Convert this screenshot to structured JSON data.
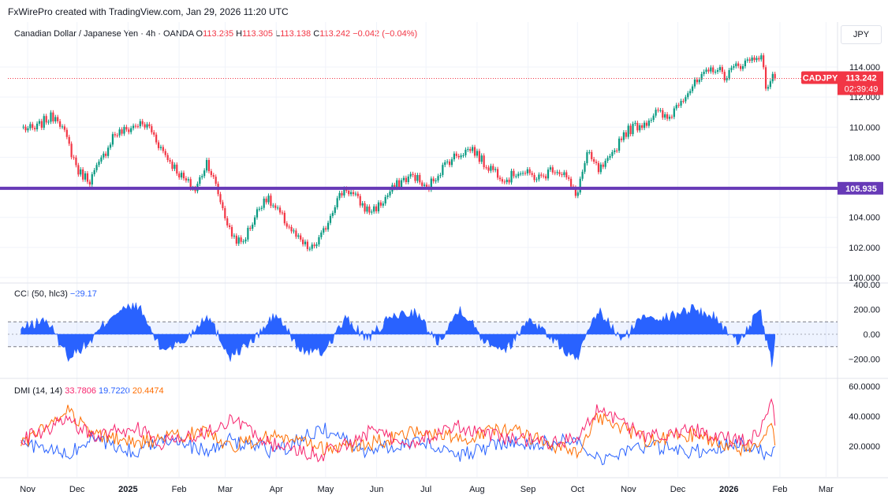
{
  "header": {
    "credit": "FxWirePro created with TradingView.com, Jan 29, 2026 11:20 UTC"
  },
  "symbol": {
    "name": "Canadian Dollar / Japanese Yen · 4h · OANDA",
    "open_label": "O",
    "open": "113.285",
    "high_label": "H",
    "high": "113.305",
    "low_label": "L",
    "low": "113.138",
    "close_label": "C",
    "close": "113.242",
    "change": "−0.042 (−0.04%)"
  },
  "currency": "JPY",
  "price_tag": {
    "ticker": "CADJPY",
    "price": "113.242",
    "countdown": "02:39:49"
  },
  "level_line": {
    "value": 105.935,
    "label": "105.935",
    "color": "#673ab7"
  },
  "cci": {
    "label": "CCI (50, hlc3)",
    "value": "−29.17",
    "ticks": [
      "400.00",
      "200.00",
      "0.00",
      "−200.00"
    ]
  },
  "dmi": {
    "label": "DMI (14, 14)",
    "plus": "33.7806",
    "minus": "19.7220",
    "adx": "20.4474",
    "ticks": [
      "60.0000",
      "40.0000",
      "20.0000"
    ]
  },
  "colors": {
    "up": "#089981",
    "down": "#f23645",
    "cci": "#2962ff",
    "dmi_plus": "#f7246d",
    "dmi_minus": "#2962ff",
    "adx": "#ff6d00"
  },
  "chart_data": {
    "type": "line",
    "x_ticks": [
      "Nov",
      "Dec",
      "2025",
      "Feb",
      "Mar",
      "Apr",
      "May",
      "Jun",
      "Jul",
      "Aug",
      "Sep",
      "Oct",
      "Nov",
      "Dec",
      "2026",
      "Feb",
      "Mar"
    ],
    "y_ticks": [
      "114.000",
      "112.000",
      "110.000",
      "108.000",
      "106.000",
      "104.000",
      "102.000",
      "100.000"
    ],
    "ylim": [
      100,
      115.5
    ],
    "grid": true,
    "series": [
      {
        "name": "CADJPY",
        "x": [
          "2024-10-28",
          "2024-11-05",
          "2024-11-12",
          "2024-11-19",
          "2024-11-26",
          "2024-12-02",
          "2024-12-09",
          "2024-12-16",
          "2024-12-23",
          "2024-12-31",
          "2025-01-07",
          "2025-01-14",
          "2025-01-21",
          "2025-01-28",
          "2025-02-04",
          "2025-02-11",
          "2025-02-18",
          "2025-02-25",
          "2025-03-04",
          "2025-03-11",
          "2025-03-18",
          "2025-03-25",
          "2025-04-01",
          "2025-04-08",
          "2025-04-15",
          "2025-04-22",
          "2025-04-29",
          "2025-05-06",
          "2025-05-13",
          "2025-05-20",
          "2025-05-27",
          "2025-06-03",
          "2025-06-10",
          "2025-06-17",
          "2025-06-24",
          "2025-07-01",
          "2025-07-08",
          "2025-07-15",
          "2025-07-22",
          "2025-07-29",
          "2025-08-05",
          "2025-08-12",
          "2025-08-19",
          "2025-08-26",
          "2025-09-02",
          "2025-09-09",
          "2025-09-16",
          "2025-09-23",
          "2025-09-30",
          "2025-10-07",
          "2025-10-14",
          "2025-10-21",
          "2025-10-28",
          "2025-11-04",
          "2025-11-11",
          "2025-11-18",
          "2025-11-25",
          "2025-12-02",
          "2025-12-09",
          "2025-12-16",
          "2025-12-23",
          "2025-12-30",
          "2026-01-06",
          "2026-01-13",
          "2026-01-20",
          "2026-01-24",
          "2026-01-27",
          "2026-01-29"
        ],
        "y": [
          110.0,
          109.8,
          110.5,
          110.8,
          108.8,
          107.0,
          106.5,
          107.8,
          109.5,
          109.8,
          110.2,
          110.0,
          108.6,
          107.5,
          106.5,
          105.8,
          107.8,
          105.5,
          103.0,
          102.2,
          103.8,
          105.4,
          104.5,
          103.5,
          102.4,
          101.8,
          102.8,
          104.8,
          106.0,
          105.2,
          104.4,
          104.8,
          105.8,
          106.5,
          106.8,
          105.8,
          106.9,
          107.8,
          108.3,
          108.6,
          107.6,
          107.1,
          106.5,
          107.1,
          106.8,
          106.6,
          107.3,
          106.9,
          105.4,
          108.2,
          107.1,
          107.8,
          109.5,
          110.0,
          110.3,
          111.0,
          110.5,
          111.8,
          112.6,
          113.3,
          114.0,
          113.4,
          114.1,
          114.4,
          114.9,
          112.5,
          113.4,
          113.24
        ]
      },
      {
        "name": "CCI",
        "x": [
          "2024-10-28",
          "2024-11-12",
          "2024-11-26",
          "2024-12-09",
          "2024-12-23",
          "2025-01-07",
          "2025-01-21",
          "2025-02-04",
          "2025-02-18",
          "2025-03-04",
          "2025-03-18",
          "2025-04-01",
          "2025-04-15",
          "2025-04-29",
          "2025-05-13",
          "2025-05-27",
          "2025-06-10",
          "2025-06-24",
          "2025-07-08",
          "2025-07-22",
          "2025-08-05",
          "2025-08-19",
          "2025-09-02",
          "2025-09-16",
          "2025-09-30",
          "2025-10-14",
          "2025-10-28",
          "2025-11-11",
          "2025-11-25",
          "2025-12-09",
          "2025-12-23",
          "2026-01-06",
          "2026-01-20",
          "2026-01-27",
          "2026-01-29"
        ],
        "y": [
          40,
          120,
          -180,
          -60,
          170,
          230,
          -120,
          -60,
          160,
          -180,
          -50,
          160,
          -120,
          -150,
          120,
          -40,
          140,
          180,
          -60,
          210,
          -40,
          -120,
          130,
          -40,
          -210,
          190,
          -50,
          160,
          130,
          210,
          140,
          -60,
          180,
          -230,
          -29.17
        ]
      },
      {
        "name": "+DI",
        "x": [
          "2024-10-28",
          "2024-11-26",
          "2024-12-09",
          "2025-01-07",
          "2025-01-21",
          "2025-02-18",
          "2025-03-04",
          "2025-04-01",
          "2025-04-29",
          "2025-05-27",
          "2025-06-24",
          "2025-07-22",
          "2025-08-19",
          "2025-09-16",
          "2025-09-30",
          "2025-10-14",
          "2025-11-11",
          "2025-12-09",
          "2026-01-06",
          "2026-01-20",
          "2026-01-27",
          "2026-01-29"
        ],
        "y": [
          24,
          38,
          27,
          32,
          22,
          30,
          38,
          20,
          14,
          29,
          23,
          33,
          25,
          23,
          24,
          45,
          26,
          31,
          24,
          28,
          52,
          33.78
        ]
      },
      {
        "name": "−DI",
        "x": [
          "2024-10-28",
          "2024-11-26",
          "2024-12-09",
          "2025-01-07",
          "2025-01-21",
          "2025-02-18",
          "2025-03-04",
          "2025-04-01",
          "2025-04-29",
          "2025-05-27",
          "2025-06-24",
          "2025-07-22",
          "2025-08-19",
          "2025-09-16",
          "2025-09-30",
          "2025-10-14",
          "2025-11-11",
          "2025-12-09",
          "2026-01-06",
          "2026-01-20",
          "2026-01-27",
          "2026-01-29"
        ],
        "y": [
          22,
          14,
          25,
          15,
          27,
          16,
          24,
          16,
          32,
          16,
          24,
          14,
          23,
          22,
          26,
          12,
          20,
          16,
          22,
          18,
          10,
          19.72
        ]
      },
      {
        "name": "ADX",
        "x": [
          "2024-10-28",
          "2024-11-26",
          "2024-12-09",
          "2025-01-07",
          "2025-01-21",
          "2025-02-18",
          "2025-03-04",
          "2025-04-01",
          "2025-04-29",
          "2025-05-27",
          "2025-06-24",
          "2025-07-22",
          "2025-08-19",
          "2025-09-16",
          "2025-09-30",
          "2025-10-14",
          "2025-11-11",
          "2025-12-09",
          "2026-01-06",
          "2026-01-20",
          "2026-01-27",
          "2026-01-29"
        ],
        "y": [
          20,
          45,
          28,
          22,
          25,
          30,
          20,
          27,
          18,
          21,
          30,
          25,
          32,
          20,
          16,
          40,
          24,
          28,
          18,
          22,
          38,
          20.45
        ]
      }
    ]
  }
}
